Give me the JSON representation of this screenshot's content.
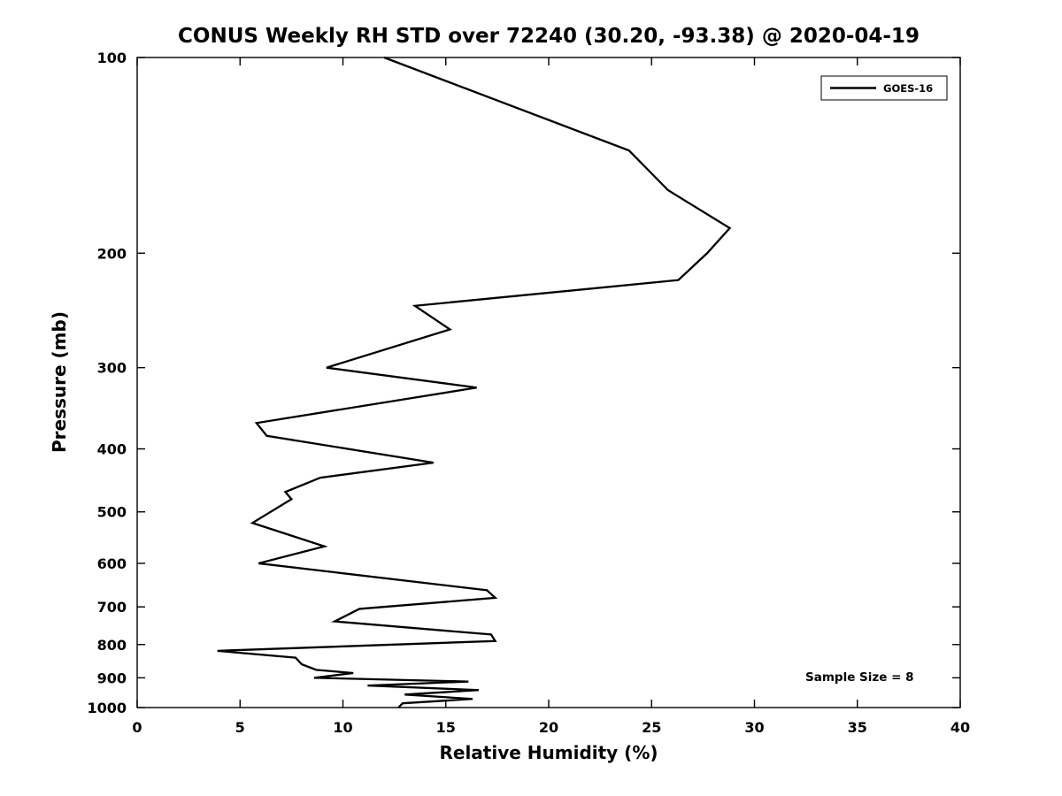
{
  "chart_data": {
    "type": "line",
    "title": "CONUS Weekly RH STD over 72240 (30.20, -93.38) @ 2020-04-19",
    "xlabel": "Relative Humidity (%)",
    "ylabel": "Pressure (mb)",
    "xlim": [
      0,
      40
    ],
    "ylim": [
      100,
      1000
    ],
    "yscale": "log",
    "y_inverted": true,
    "grid": false,
    "xticks": [
      0,
      5,
      10,
      15,
      20,
      25,
      30,
      35,
      40
    ],
    "yticks": [
      100,
      200,
      300,
      400,
      500,
      600,
      700,
      800,
      900,
      1000
    ],
    "line_color": "#000000",
    "background_color": "#ffffff",
    "legend": {
      "position": "top-right",
      "entries": [
        {
          "label": "GOES-16",
          "color": "#000000",
          "style": "solid-line"
        }
      ]
    },
    "annotation": "Sample Size = 8",
    "series": [
      {
        "name": "GOES-16",
        "color": "#000000",
        "points_pressure_rh": [
          [
            100,
            12.0
          ],
          [
            139,
            23.9
          ],
          [
            160,
            25.8
          ],
          [
            183,
            28.8
          ],
          [
            200,
            27.7
          ],
          [
            220,
            26.3
          ],
          [
            241,
            13.5
          ],
          [
            262,
            15.2
          ],
          [
            300,
            9.2
          ],
          [
            322,
            16.5
          ],
          [
            365,
            5.8
          ],
          [
            382,
            6.3
          ],
          [
            420,
            14.4
          ],
          [
            443,
            8.9
          ],
          [
            466,
            7.2
          ],
          [
            478,
            7.5
          ],
          [
            520,
            5.6
          ],
          [
            565,
            9.1
          ],
          [
            600,
            5.9
          ],
          [
            660,
            17.0
          ],
          [
            678,
            17.4
          ],
          [
            705,
            10.8
          ],
          [
            737,
            9.6
          ],
          [
            772,
            17.2
          ],
          [
            790,
            17.4
          ],
          [
            818,
            3.9
          ],
          [
            838,
            7.7
          ],
          [
            858,
            8.0
          ],
          [
            875,
            8.7
          ],
          [
            885,
            10.5
          ],
          [
            900,
            8.6
          ],
          [
            912,
            16.1
          ],
          [
            925,
            11.2
          ],
          [
            940,
            16.6
          ],
          [
            955,
            13.0
          ],
          [
            970,
            16.3
          ],
          [
            985,
            12.9
          ],
          [
            1000,
            12.7
          ]
        ]
      }
    ]
  }
}
